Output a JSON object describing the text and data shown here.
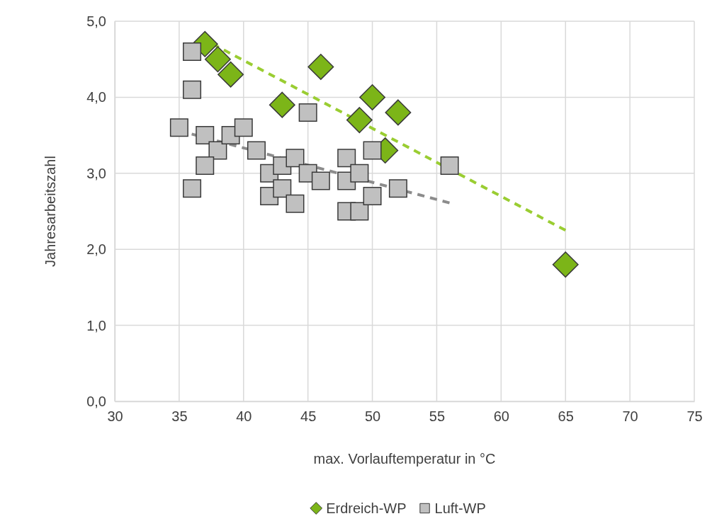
{
  "chart_data": {
    "type": "scatter",
    "xlabel": "max. Vorlauftemperatur in °C",
    "ylabel": "Jahresarbeitszahl",
    "xlim": [
      30,
      75
    ],
    "xticks": [
      30,
      35,
      40,
      45,
      50,
      55,
      60,
      65,
      70,
      75
    ],
    "ylim": [
      0,
      5
    ],
    "yticks": [
      {
        "value": 0,
        "label": "0,0"
      },
      {
        "value": 1,
        "label": "1,0"
      },
      {
        "value": 2,
        "label": "2,0"
      },
      {
        "value": 3,
        "label": "3,0"
      },
      {
        "value": 4,
        "label": "4,0"
      },
      {
        "value": 5,
        "label": "5,0"
      }
    ],
    "grid": true,
    "legend": "bottom",
    "series": [
      {
        "type": "line",
        "color": "#9acd32",
        "line_style": "dashed",
        "marker": "none",
        "x": [
          37.6,
          65
        ],
        "values": [
          4.7,
          2.25
        ]
      },
      {
        "type": "line",
        "color": "#8c8c8c",
        "line_style": "dashed",
        "marker": "none",
        "x": [
          35,
          56
        ],
        "values": [
          3.56,
          2.61
        ]
      },
      {
        "name": "Erdreich-WP",
        "color": "#7cb518",
        "marker": "diamond",
        "x": [
          37,
          38,
          39,
          43,
          46,
          49,
          50,
          51,
          52,
          65
        ],
        "values": [
          4.7,
          4.5,
          4.3,
          3.9,
          4.4,
          3.7,
          4.0,
          3.3,
          3.8,
          1.8
        ]
      },
      {
        "name": "Luft-WP",
        "color": "#c0c0c0",
        "marker": "square",
        "x": [
          36,
          36,
          35,
          37,
          38,
          39,
          40,
          37,
          36,
          41,
          42,
          42,
          43,
          43,
          44,
          44,
          45,
          45,
          46,
          48,
          48,
          48,
          49,
          49,
          50,
          50,
          52,
          56
        ],
        "values": [
          4.6,
          4.1,
          3.6,
          3.5,
          3.3,
          3.5,
          3.6,
          3.1,
          2.8,
          3.3,
          3.0,
          2.7,
          3.1,
          2.8,
          3.2,
          2.6,
          3.8,
          3.0,
          2.9,
          3.2,
          2.9,
          2.5,
          3.0,
          2.5,
          3.3,
          2.7,
          2.8,
          3.1
        ]
      }
    ]
  }
}
